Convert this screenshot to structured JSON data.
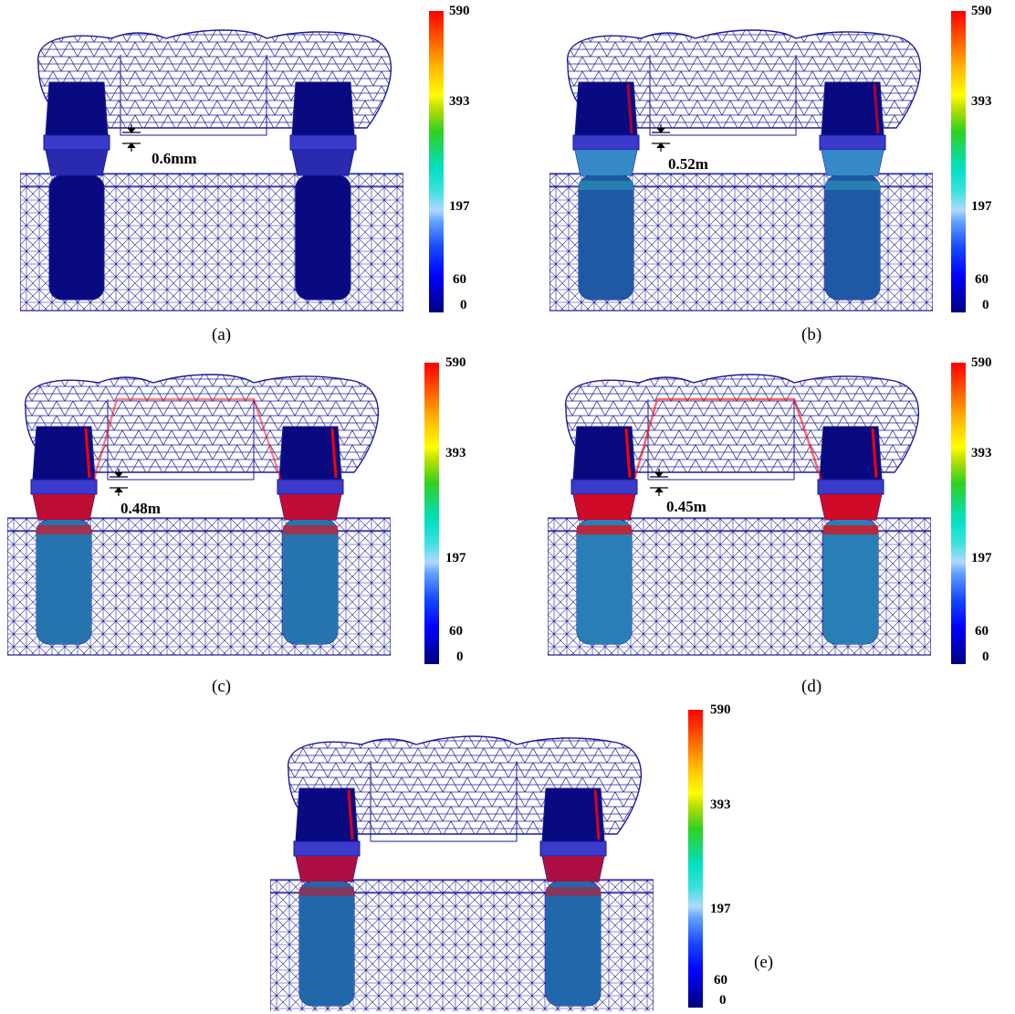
{
  "colorbar": {
    "ticks": [
      "590",
      "393",
      "197",
      "60",
      "0"
    ]
  },
  "panels": [
    {
      "id": "a",
      "caption": "(a)",
      "gap_label": "0.6mm",
      "stress_level": 0.0
    },
    {
      "id": "b",
      "caption": "(b)",
      "gap_label": "0.52m",
      "stress_level": 0.35
    },
    {
      "id": "c",
      "caption": "(c)",
      "gap_label": "0.48m",
      "stress_level": 0.7
    },
    {
      "id": "d",
      "caption": "(d)",
      "gap_label": "0.45m",
      "stress_level": 0.85
    },
    {
      "id": "e",
      "caption": "(e)",
      "gap_label": "",
      "stress_level": 0.55
    }
  ],
  "colors": {
    "mesh": "#1a1a9a",
    "implant": "#0a0a80",
    "low": "#0000ff",
    "mid": "#40e0e0",
    "high": "#ff0000"
  }
}
